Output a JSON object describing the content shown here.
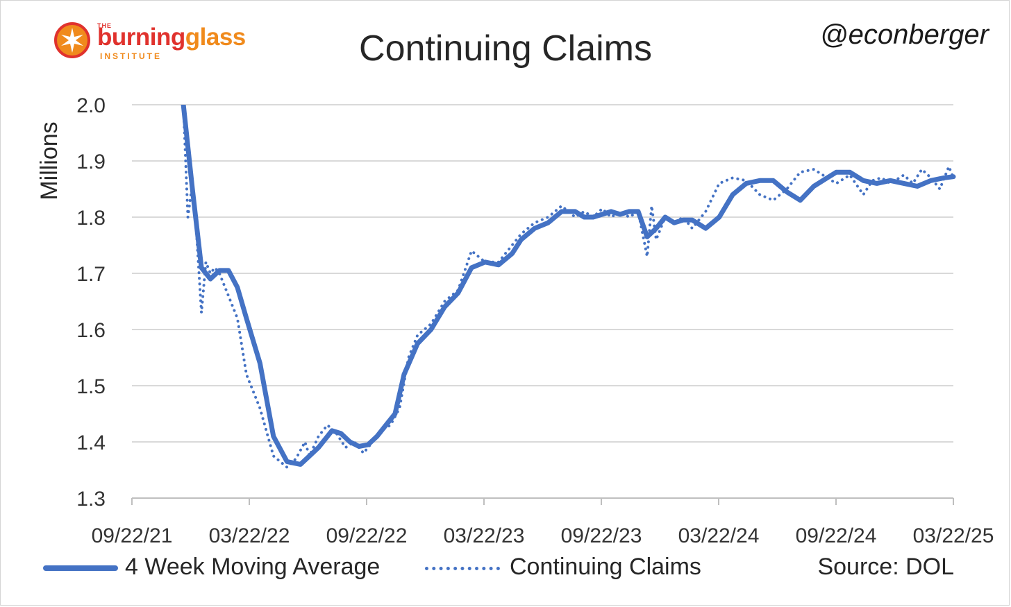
{
  "logo": {
    "prefix": "THE",
    "word_part1": "burning",
    "word_part2": "glass",
    "sub": "INSTITUTE"
  },
  "handle": "@econberger",
  "source": "Source: DOL",
  "colors": {
    "series": "#4472c4",
    "grid": "#d9d9d9",
    "logo_red": "#e0322d",
    "logo_orange": "#f08a1c"
  },
  "chart_data": {
    "type": "line",
    "title": "Continuing Claims",
    "xlabel": "",
    "ylabel": "Millions",
    "ylim": [
      1.3,
      2.0
    ],
    "yticks": [
      "1.3",
      "1.4",
      "1.5",
      "1.6",
      "1.7",
      "1.8",
      "1.9",
      "2.0"
    ],
    "xticks": [
      "09/22/21",
      "03/22/22",
      "09/22/22",
      "03/22/23",
      "09/22/23",
      "03/22/24",
      "09/22/24",
      "03/22/25"
    ],
    "xlim": [
      "2021-09-22",
      "2025-03-22"
    ],
    "grid": true,
    "legend_position": "bottom",
    "series": [
      {
        "name": "4 Week Moving Average",
        "style": "solid",
        "x": [
          "2021-12-11",
          "2021-12-25",
          "2022-01-08",
          "2022-01-22",
          "2022-02-05",
          "2022-02-19",
          "2022-03-05",
          "2022-03-19",
          "2022-04-09",
          "2022-04-30",
          "2022-05-21",
          "2022-06-11",
          "2022-06-25",
          "2022-07-09",
          "2022-07-30",
          "2022-08-13",
          "2022-08-27",
          "2022-09-10",
          "2022-09-24",
          "2022-10-08",
          "2022-10-22",
          "2022-11-05",
          "2022-11-19",
          "2022-12-10",
          "2022-12-31",
          "2023-01-21",
          "2023-02-11",
          "2023-03-04",
          "2023-03-25",
          "2023-04-15",
          "2023-05-06",
          "2023-05-20",
          "2023-06-10",
          "2023-07-01",
          "2023-07-22",
          "2023-08-12",
          "2023-08-26",
          "2023-09-09",
          "2023-09-23",
          "2023-10-07",
          "2023-10-21",
          "2023-11-04",
          "2023-11-18",
          "2023-12-02",
          "2023-12-16",
          "2023-12-30",
          "2024-01-13",
          "2024-01-27",
          "2024-02-10",
          "2024-03-02",
          "2024-03-23",
          "2024-04-13",
          "2024-05-04",
          "2024-05-25",
          "2024-06-15",
          "2024-07-06",
          "2024-07-27",
          "2024-08-17",
          "2024-09-07",
          "2024-09-21",
          "2024-10-12",
          "2024-11-02",
          "2024-11-23",
          "2024-12-14",
          "2025-01-04",
          "2025-01-25",
          "2025-02-15",
          "2025-03-08",
          "2025-03-22"
        ],
        "y": [
          2.0,
          1.85,
          1.71,
          1.69,
          1.705,
          1.705,
          1.675,
          1.62,
          1.54,
          1.41,
          1.365,
          1.36,
          1.375,
          1.39,
          1.42,
          1.415,
          1.4,
          1.392,
          1.395,
          1.41,
          1.43,
          1.45,
          1.52,
          1.575,
          1.6,
          1.64,
          1.665,
          1.71,
          1.72,
          1.715,
          1.735,
          1.76,
          1.78,
          1.79,
          1.81,
          1.81,
          1.8,
          1.8,
          1.805,
          1.81,
          1.805,
          1.81,
          1.81,
          1.765,
          1.78,
          1.8,
          1.79,
          1.795,
          1.795,
          1.78,
          1.8,
          1.84,
          1.86,
          1.865,
          1.865,
          1.845,
          1.83,
          1.855,
          1.87,
          1.88,
          1.88,
          1.865,
          1.86,
          1.865,
          1.86,
          1.855,
          1.865,
          1.87,
          1.872
        ]
      },
      {
        "name": "Continuing Claims",
        "style": "dotted",
        "x": [
          "2021-12-11",
          "2021-12-18",
          "2021-12-25",
          "2022-01-01",
          "2022-01-08",
          "2022-01-15",
          "2022-01-22",
          "2022-01-29",
          "2022-02-05",
          "2022-02-19",
          "2022-03-05",
          "2022-03-19",
          "2022-04-09",
          "2022-04-30",
          "2022-05-21",
          "2022-06-04",
          "2022-06-18",
          "2022-06-25",
          "2022-07-09",
          "2022-07-23",
          "2022-08-06",
          "2022-08-20",
          "2022-09-03",
          "2022-09-17",
          "2022-10-01",
          "2022-10-15",
          "2022-10-29",
          "2022-11-12",
          "2022-11-26",
          "2022-12-10",
          "2022-12-31",
          "2023-01-21",
          "2023-02-11",
          "2023-03-04",
          "2023-03-25",
          "2023-04-15",
          "2023-05-06",
          "2023-05-20",
          "2023-06-10",
          "2023-07-01",
          "2023-07-22",
          "2023-08-12",
          "2023-08-26",
          "2023-09-09",
          "2023-09-23",
          "2023-10-07",
          "2023-10-21",
          "2023-11-04",
          "2023-11-18",
          "2023-12-02",
          "2023-12-09",
          "2023-12-16",
          "2023-12-30",
          "2024-01-13",
          "2024-01-27",
          "2024-02-10",
          "2024-03-02",
          "2024-03-23",
          "2024-04-13",
          "2024-05-04",
          "2024-05-25",
          "2024-06-15",
          "2024-07-06",
          "2024-07-27",
          "2024-08-17",
          "2024-09-07",
          "2024-09-21",
          "2024-10-12",
          "2024-11-02",
          "2024-11-16",
          "2024-11-30",
          "2024-12-14",
          "2025-01-04",
          "2025-01-18",
          "2025-02-01",
          "2025-02-15",
          "2025-03-01",
          "2025-03-15",
          "2025-03-22"
        ],
        "y": [
          2.0,
          1.8,
          1.86,
          1.76,
          1.63,
          1.72,
          1.7,
          1.71,
          1.7,
          1.66,
          1.62,
          1.52,
          1.46,
          1.375,
          1.355,
          1.37,
          1.4,
          1.375,
          1.41,
          1.43,
          1.415,
          1.39,
          1.4,
          1.38,
          1.4,
          1.42,
          1.43,
          1.46,
          1.55,
          1.59,
          1.61,
          1.65,
          1.67,
          1.74,
          1.72,
          1.72,
          1.75,
          1.77,
          1.79,
          1.8,
          1.82,
          1.8,
          1.81,
          1.8,
          1.815,
          1.8,
          1.81,
          1.8,
          1.81,
          1.73,
          1.82,
          1.76,
          1.8,
          1.79,
          1.8,
          1.78,
          1.81,
          1.86,
          1.87,
          1.865,
          1.84,
          1.83,
          1.85,
          1.88,
          1.885,
          1.87,
          1.86,
          1.875,
          1.84,
          1.865,
          1.87,
          1.86,
          1.875,
          1.86,
          1.885,
          1.87,
          1.85,
          1.89,
          1.87
        ]
      }
    ]
  }
}
